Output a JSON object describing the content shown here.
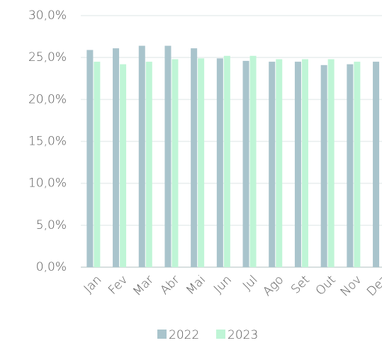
{
  "chart_data": {
    "type": "bar",
    "categories": [
      "Jan",
      "Fev",
      "Mar",
      "Abr",
      "Mai",
      "Jun",
      "Jul",
      "Ago",
      "Set",
      "Out",
      "Nov",
      "Dez"
    ],
    "series": [
      {
        "name": "2022",
        "color": "#a9c4cc",
        "values": [
          25.9,
          26.1,
          26.4,
          26.4,
          26.1,
          24.9,
          24.6,
          24.5,
          24.5,
          24.1,
          24.2,
          24.5
        ]
      },
      {
        "name": "2023",
        "color": "#bff5d6",
        "values": [
          24.5,
          24.2,
          24.5,
          24.8,
          24.9,
          25.2,
          25.2,
          24.8,
          24.8,
          24.8,
          24.5,
          null
        ]
      }
    ],
    "ylim": [
      0,
      30
    ],
    "yticks": [
      {
        "value": 0,
        "label": "0,0%"
      },
      {
        "value": 5,
        "label": "5,0%"
      },
      {
        "value": 10,
        "label": "10,0%"
      },
      {
        "value": 15,
        "label": "15,0%"
      },
      {
        "value": 20,
        "label": "20,0%"
      },
      {
        "value": 25,
        "label": "25,0%"
      },
      {
        "value": 30,
        "label": "30,0%"
      }
    ],
    "grid": true,
    "legend": "bottom"
  }
}
